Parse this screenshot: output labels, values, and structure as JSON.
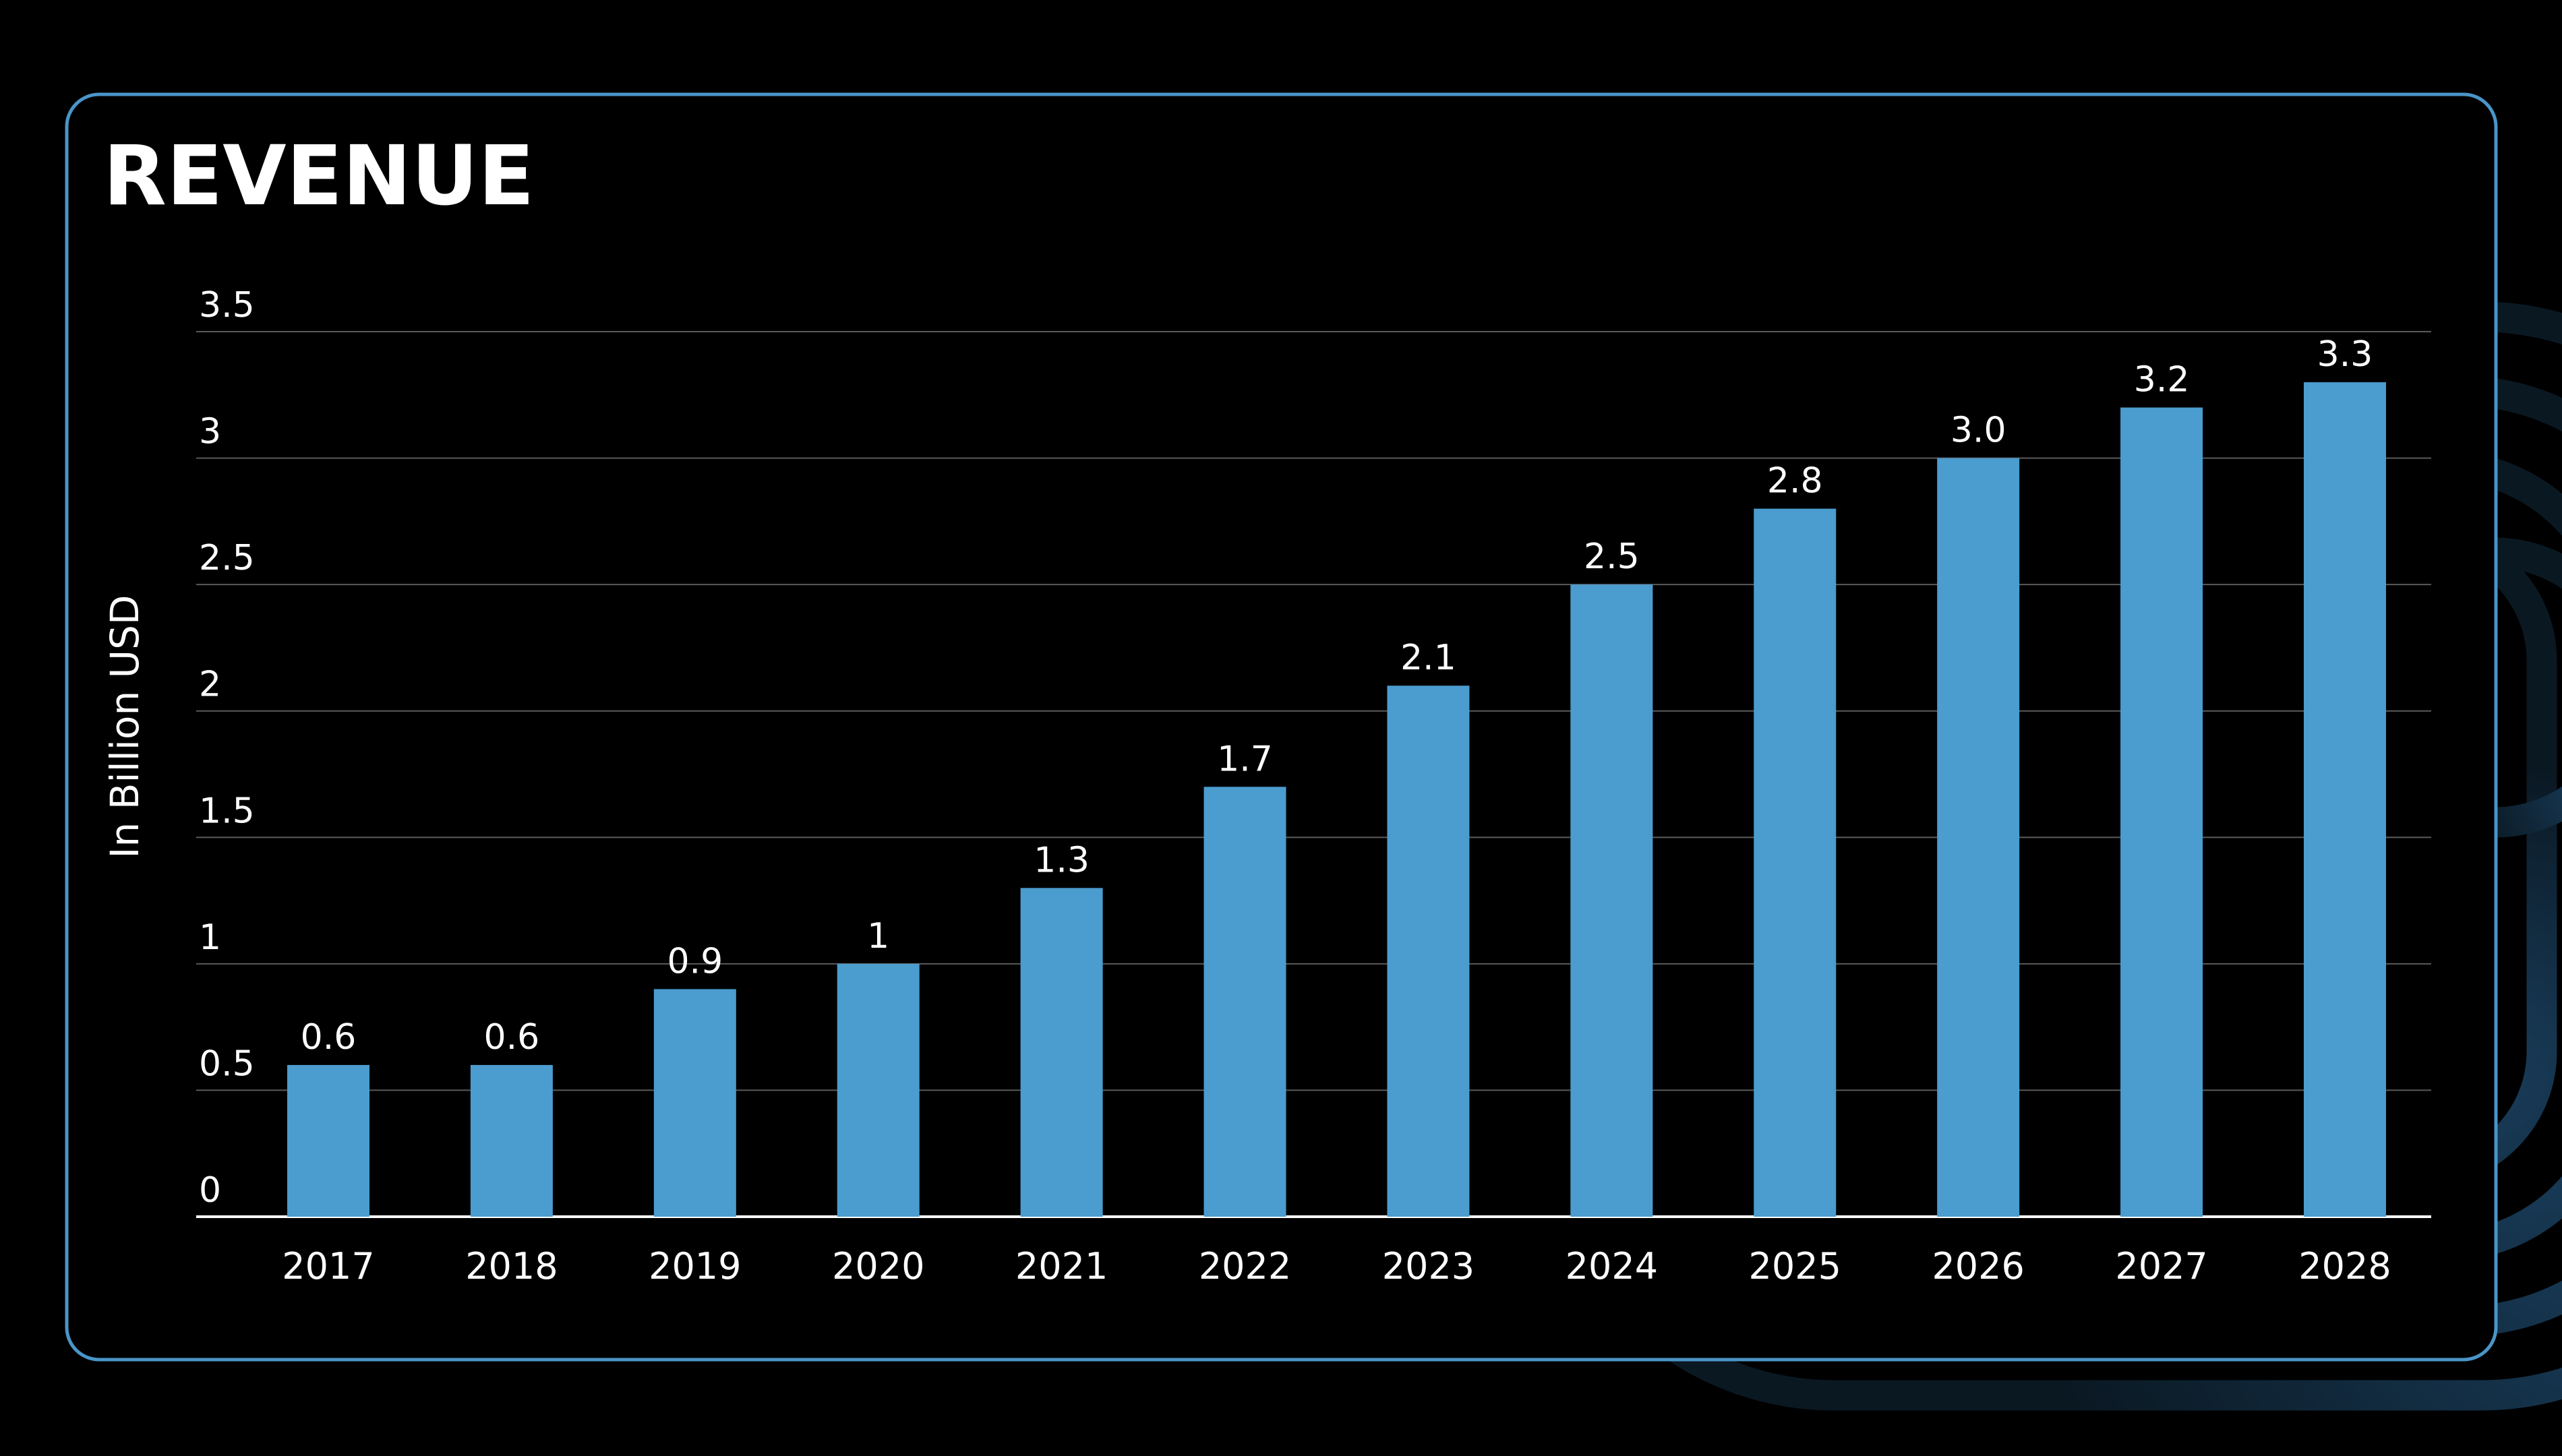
{
  "chart_data": {
    "type": "bar",
    "title": "REVENUE",
    "y_label": "In Billion USD",
    "categories": [
      "2017",
      "2018",
      "2019",
      "2020",
      "2021",
      "2022",
      "2023",
      "2024",
      "2025",
      "2026",
      "2027",
      "2028"
    ],
    "values": [
      0.6,
      0.6,
      0.9,
      1,
      1.3,
      1.7,
      2.1,
      2.5,
      2.8,
      3.0,
      3.2,
      3.3
    ],
    "value_labels": [
      "0.6",
      "0.6",
      "0.9",
      "1",
      "1.3",
      "1.7",
      "2.1",
      "2.5",
      "2.8",
      "3.0",
      "3.2",
      "3.3"
    ],
    "color": "#4b9ccf",
    "ylim": [
      0,
      3.5
    ],
    "yticks": [
      0,
      0.5,
      1,
      1.5,
      2,
      2.5,
      3,
      3.5
    ],
    "grid": true
  }
}
